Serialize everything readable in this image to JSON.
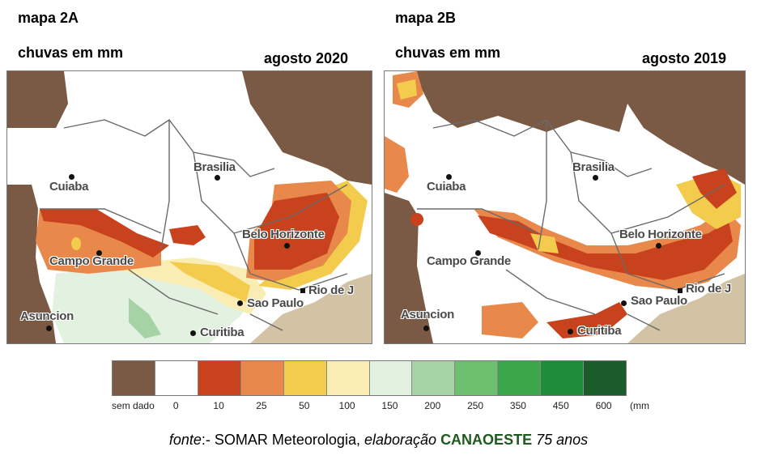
{
  "left": {
    "title": "mapa 2A",
    "subtitle": "chuvas em mm",
    "period": "agosto 2020",
    "cities": {
      "cuiaba": "Cuiaba",
      "brasilia": "Brasilia",
      "belo_horizonte": "Belo Horizonte",
      "campo_grande": "Campo Grande",
      "rio": "Rio de J",
      "sao_paulo": "Sao Paulo",
      "asuncion": "Asuncion",
      "curitiba": "Curitiba"
    }
  },
  "right": {
    "title": "mapa 2B",
    "subtitle": "chuvas em mm",
    "period": "agosto 2019",
    "cities": {
      "cuiaba": "Cuiaba",
      "brasilia": "Brasilia",
      "belo_horizonte": "Belo Horizonte",
      "campo_grande": "Campo Grande",
      "rio": "Rio de J",
      "sao_paulo": "Sao Paulo",
      "asuncion": "Asuncion",
      "curitiba": "Curitiba"
    }
  },
  "legend": {
    "labels": [
      "sem dado",
      "0",
      "10",
      "25",
      "50",
      "100",
      "150",
      "200",
      "250",
      "350",
      "450",
      "600",
      "(mm"
    ],
    "colors": [
      "#7a5a45",
      "#ffffff",
      "#c8421e",
      "#e8884a",
      "#f3cc4e",
      "#f9edb4",
      "#e3f1e0",
      "#a6d3a6",
      "#6dc06d",
      "#3aa84a",
      "#1f8c3a",
      "#1a5c2a"
    ]
  },
  "colors": {
    "no_data": "#7a5a45",
    "zero": "#ffffff",
    "r10": "#c8421e",
    "r25": "#e8884a",
    "r50": "#f3cc4e",
    "r100": "#f9edb4",
    "r150": "#e3f1e0",
    "r200": "#a6d3a6",
    "ocean": "#d2c3a4"
  },
  "source": {
    "prefix": "fonte",
    "middle": ":- SOMAR Meteorologia, ",
    "elab": "elaboração",
    "org": "CANAOESTE",
    "suffix": "75 anos"
  }
}
